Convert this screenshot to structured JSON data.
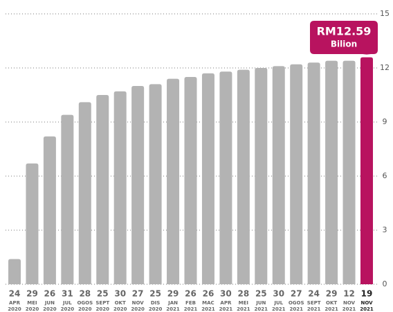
{
  "chart_data": {
    "type": "bar",
    "categories": [
      {
        "day": "24",
        "month": "APR",
        "year": "2020"
      },
      {
        "day": "29",
        "month": "MEI",
        "year": "2020"
      },
      {
        "day": "26",
        "month": "JUN",
        "year": "2020"
      },
      {
        "day": "31",
        "month": "JUL",
        "year": "2020"
      },
      {
        "day": "28",
        "month": "OGOS",
        "year": "2020"
      },
      {
        "day": "25",
        "month": "SEPT",
        "year": "2020"
      },
      {
        "day": "30",
        "month": "OKT",
        "year": "2020"
      },
      {
        "day": "27",
        "month": "NOV",
        "year": "2020"
      },
      {
        "day": "25",
        "month": "DIS",
        "year": "2020"
      },
      {
        "day": "29",
        "month": "JAN",
        "year": "2021"
      },
      {
        "day": "26",
        "month": "FEB",
        "year": "2021"
      },
      {
        "day": "26",
        "month": "MAC",
        "year": "2021"
      },
      {
        "day": "30",
        "month": "APR",
        "year": "2021"
      },
      {
        "day": "28",
        "month": "MEI",
        "year": "2021"
      },
      {
        "day": "25",
        "month": "JUN",
        "year": "2021"
      },
      {
        "day": "30",
        "month": "JUL",
        "year": "2021"
      },
      {
        "day": "27",
        "month": "OGOS",
        "year": "2021"
      },
      {
        "day": "24",
        "month": "SEPT",
        "year": "2021"
      },
      {
        "day": "29",
        "month": "OKT",
        "year": "2021"
      },
      {
        "day": "12",
        "month": "NOV",
        "year": "2021"
      },
      {
        "day": "19",
        "month": "NOV",
        "year": "2021"
      }
    ],
    "values": [
      1.4,
      6.7,
      8.2,
      9.4,
      10.1,
      10.5,
      10.7,
      11.0,
      11.1,
      11.4,
      11.5,
      11.7,
      11.8,
      11.9,
      12.0,
      12.1,
      12.2,
      12.3,
      12.4,
      12.4,
      12.59
    ],
    "colors": [
      "#b3b3b3",
      "#b3b3b3",
      "#b3b3b3",
      "#b3b3b3",
      "#b3b3b3",
      "#b3b3b3",
      "#b3b3b3",
      "#b3b3b3",
      "#b3b3b3",
      "#b3b3b3",
      "#b3b3b3",
      "#b3b3b3",
      "#b3b3b3",
      "#b3b3b3",
      "#b3b3b3",
      "#b3b3b3",
      "#b3b3b3",
      "#b3b3b3",
      "#b3b3b3",
      "#b3b3b3",
      "#b8135f"
    ],
    "annotation": {
      "label": "RM12.59",
      "unit": "Bilion",
      "color": "#b8135f"
    },
    "ylim": [
      0,
      15
    ],
    "yticks": [
      0,
      3,
      6,
      9,
      12,
      15
    ],
    "grid": true
  }
}
